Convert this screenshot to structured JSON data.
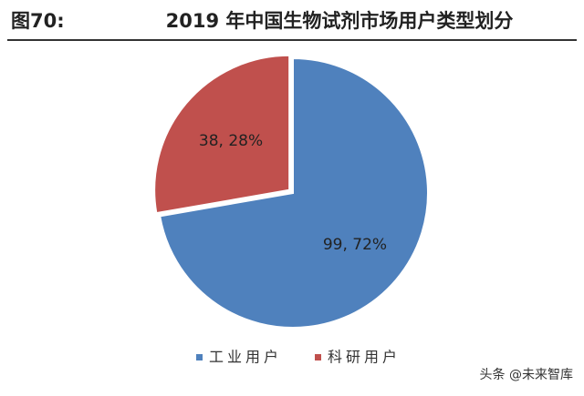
{
  "figure_label": "图70:",
  "chart_data": {
    "type": "pie",
    "title": "2019 年中国生物试剂市场用户类型划分",
    "categories": [
      "工业用户",
      "科研用户"
    ],
    "values": [
      99,
      38
    ],
    "value_labels": [
      "99, 72%",
      "38, 28%"
    ],
    "colors": [
      "#4f81bd",
      "#c0504d"
    ],
    "legend": "bottom"
  },
  "watermark": "头条 @未来智库"
}
